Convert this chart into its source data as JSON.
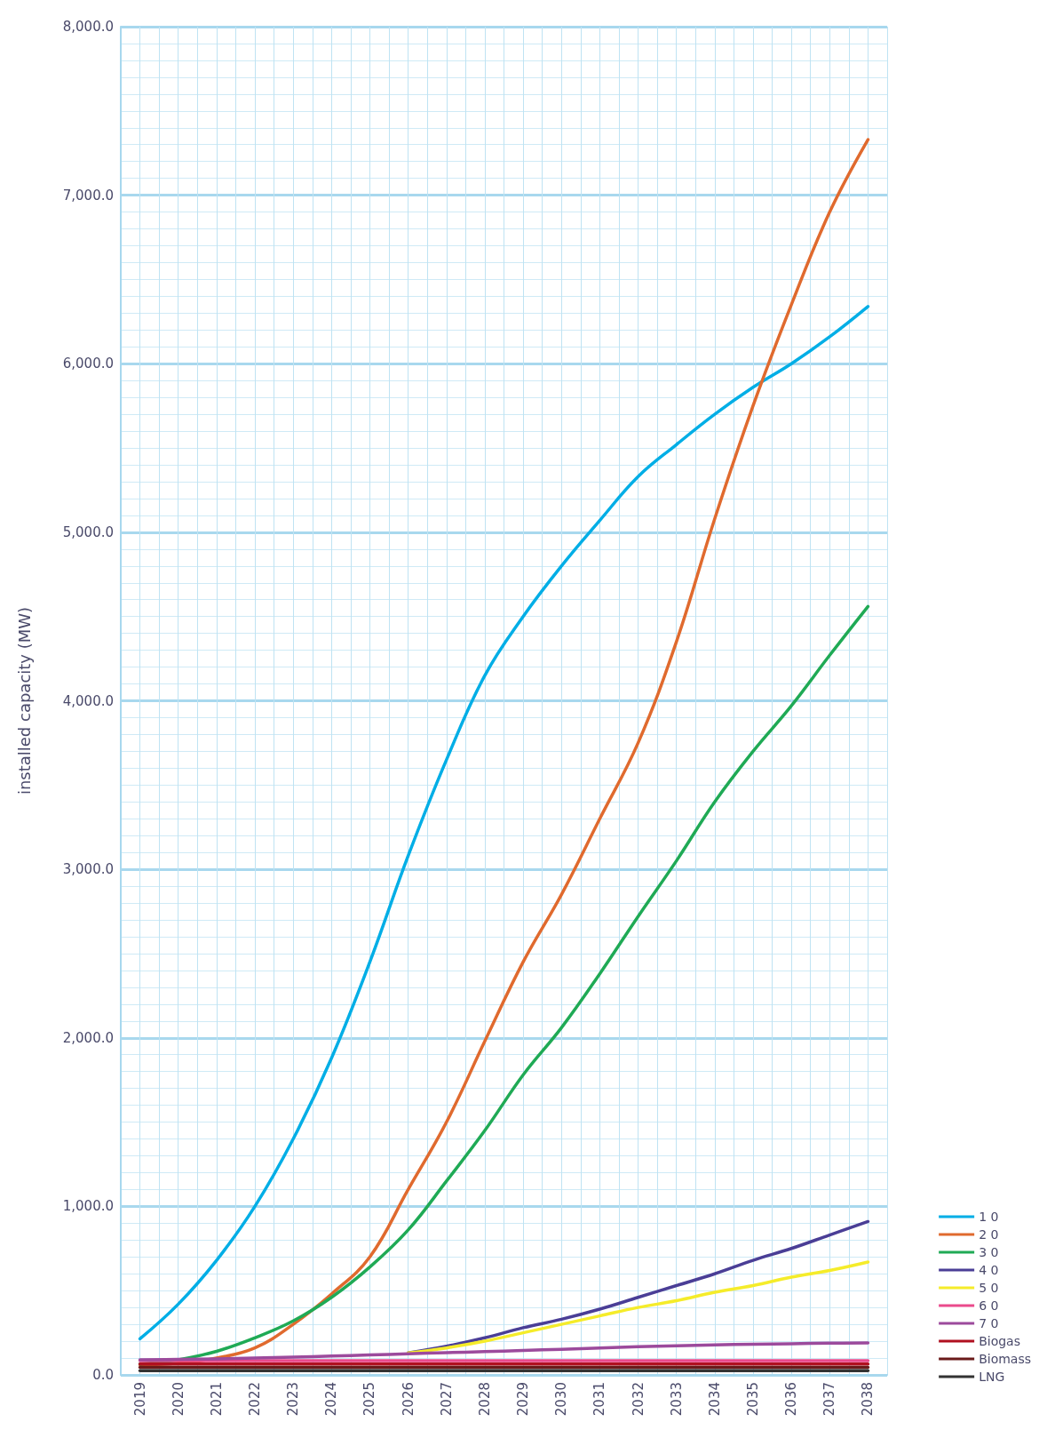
{
  "chart_data": {
    "type": "line",
    "ylabel": "installed capacity (MW)",
    "x": [
      2019,
      2020,
      2021,
      2022,
      2023,
      2024,
      2025,
      2026,
      2027,
      2028,
      2029,
      2030,
      2031,
      2032,
      2033,
      2034,
      2035,
      2036,
      2037,
      2038
    ],
    "xlim": [
      2018.5,
      2038.5
    ],
    "xticks": [
      {
        "value": 2018.5,
        "label": null
      },
      2019,
      {
        "value": 2019.5,
        "label": null
      },
      2020,
      {
        "value": 2020.5,
        "label": null
      },
      2021,
      {
        "value": 2021.5,
        "label": null
      },
      2022,
      {
        "value": 2022.5,
        "label": null
      },
      2023,
      {
        "value": 2023.5,
        "label": null
      },
      2024,
      {
        "value": 2024.5,
        "label": null
      },
      2025,
      {
        "value": 2025.5,
        "label": null
      },
      2026,
      {
        "value": 2026.5,
        "label": null
      },
      2027,
      {
        "value": 2027.5,
        "label": null
      },
      2028,
      {
        "value": 2028.5,
        "label": null
      },
      2029,
      {
        "value": 2029.5,
        "label": null
      },
      2030,
      {
        "value": 2030.5,
        "label": null
      },
      2031,
      {
        "value": 2031.5,
        "label": null
      },
      2032,
      {
        "value": 2032.5,
        "label": null
      },
      2033,
      {
        "value": 2033.5,
        "label": null
      },
      2034,
      {
        "value": 2034.5,
        "label": null
      },
      2035,
      {
        "value": 2035.5,
        "label": null
      },
      2036,
      {
        "value": 2036.5,
        "label": null
      },
      2037,
      {
        "value": 2037.5,
        "label": null
      },
      2038,
      {
        "value": 2038.5,
        "label": null
      }
    ],
    "ylim": [
      0,
      8000
    ],
    "yticks": [
      {
        "value": 0,
        "label": "0.0"
      },
      {
        "value": 1000,
        "label": "1,000.0"
      },
      {
        "value": 2000,
        "label": "2,000.0"
      },
      {
        "value": 3000,
        "label": "3,000.0"
      },
      {
        "value": 4000,
        "label": "4,000.0"
      },
      {
        "value": 5000,
        "label": "5,000.0"
      },
      {
        "value": 6000,
        "label": "6,000.0"
      },
      {
        "value": 7000,
        "label": "7,000.0"
      },
      {
        "value": 8000,
        "label": "8,000.0"
      }
    ],
    "grid": true,
    "legend": "bottom right",
    "marker": "none",
    "line_style": "solid",
    "series": [
      {
        "name": "1 0",
        "color": "#00aee6",
        "values": [
          214,
          420,
          680,
          1000,
          1400,
          1880,
          2450,
          3080,
          3650,
          4150,
          4500,
          4800,
          5070,
          5330,
          5520,
          5700,
          5860,
          6000,
          6160,
          6340
        ]
      },
      {
        "name": "2 0",
        "color": "#e06a2e",
        "values": [
          60,
          70,
          100,
          160,
          300,
          480,
          700,
          1100,
          1500,
          1980,
          2450,
          2850,
          3300,
          3750,
          4350,
          5080,
          5750,
          6350,
          6900,
          7330
        ]
      },
      {
        "name": "3 0",
        "color": "#1faa55",
        "values": [
          65,
          90,
          140,
          220,
          320,
          460,
          640,
          860,
          1150,
          1450,
          1780,
          2060,
          2380,
          2720,
          3050,
          3400,
          3700,
          3970,
          4270,
          4560
        ]
      },
      {
        "name": "4 0",
        "color": "#4a3e96",
        "values": [
          null,
          null,
          null,
          null,
          null,
          null,
          null,
          130,
          170,
          220,
          280,
          330,
          390,
          460,
          530,
          600,
          680,
          750,
          830,
          910
        ]
      },
      {
        "name": "5 0",
        "color": "#f5ec2a",
        "values": [
          null,
          null,
          null,
          null,
          null,
          null,
          null,
          130,
          160,
          200,
          250,
          300,
          350,
          400,
          440,
          490,
          530,
          580,
          620,
          670
        ]
      },
      {
        "name": "6 0",
        "color": "#ea4a8c",
        "values": [
          85,
          85,
          85,
          85,
          85,
          85,
          85,
          85,
          85,
          85,
          85,
          85,
          85,
          85,
          85,
          85,
          85,
          85,
          85,
          85
        ]
      },
      {
        "name": "7 0",
        "color": "#9c4a9c",
        "values": [
          90,
          92,
          95,
          100,
          105,
          112,
          118,
          125,
          132,
          138,
          145,
          152,
          160,
          167,
          173,
          178,
          182,
          185,
          188,
          190
        ]
      },
      {
        "name": "Biogas",
        "color": "#b01020",
        "values": [
          65,
          65,
          65,
          65,
          65,
          65,
          65,
          65,
          65,
          65,
          65,
          65,
          65,
          65,
          65,
          65,
          65,
          65,
          65,
          65
        ]
      },
      {
        "name": "Biomass",
        "color": "#6a1a1a",
        "values": [
          45,
          45,
          45,
          45,
          45,
          45,
          45,
          45,
          45,
          45,
          45,
          45,
          45,
          45,
          45,
          45,
          45,
          45,
          45,
          45
        ]
      },
      {
        "name": "LNG",
        "color": "#333333",
        "values": [
          25,
          25,
          25,
          25,
          25,
          25,
          25,
          25,
          25,
          25,
          25,
          25,
          25,
          25,
          25,
          25,
          25,
          25,
          25,
          25
        ]
      }
    ]
  }
}
